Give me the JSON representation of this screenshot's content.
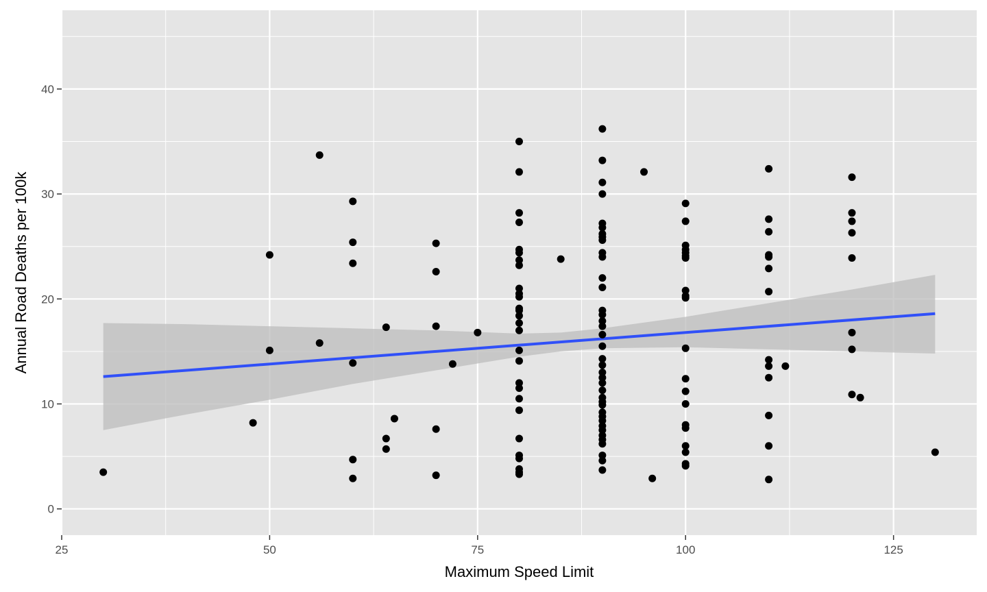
{
  "chart_data": {
    "type": "scatter",
    "title": "",
    "xlabel": "Maximum Speed Limit",
    "ylabel": "Annual Road Deaths per 100k",
    "xlim": [
      25,
      135
    ],
    "ylim": [
      -2.5,
      47.5
    ],
    "x_ticks": [
      25,
      50,
      75,
      100,
      125
    ],
    "y_ticks": [
      0,
      10,
      20,
      30,
      40
    ],
    "x_tick_labels": [
      "25",
      "50",
      "75",
      "100",
      "125"
    ],
    "y_tick_labels": [
      "0",
      "10",
      "20",
      "30",
      "40"
    ],
    "grid": true,
    "legend": "none",
    "colors": {
      "panel": "#e5e5e5",
      "grid": "#ffffff",
      "points": "#000000",
      "fit_line": "#3050f8",
      "confidence_band": "#bcbcbc"
    },
    "points": [
      [
        30,
        3.5
      ],
      [
        48,
        8.2
      ],
      [
        50,
        24.2
      ],
      [
        50,
        15.1
      ],
      [
        56,
        33.7
      ],
      [
        56,
        15.8
      ],
      [
        60,
        29.3
      ],
      [
        60,
        25.4
      ],
      [
        60,
        23.4
      ],
      [
        60,
        13.9
      ],
      [
        60,
        4.7
      ],
      [
        60,
        2.9
      ],
      [
        64,
        17.3
      ],
      [
        64,
        6.7
      ],
      [
        64,
        5.7
      ],
      [
        65,
        8.6
      ],
      [
        70,
        25.3
      ],
      [
        70,
        22.6
      ],
      [
        70,
        17.4
      ],
      [
        70,
        7.6
      ],
      [
        70,
        3.2
      ],
      [
        72,
        13.8
      ],
      [
        75,
        16.8
      ],
      [
        80,
        35.0
      ],
      [
        80,
        32.1
      ],
      [
        80,
        28.2
      ],
      [
        80,
        27.3
      ],
      [
        80,
        24.7
      ],
      [
        80,
        24.4
      ],
      [
        80,
        23.7
      ],
      [
        80,
        23.2
      ],
      [
        80,
        21.0
      ],
      [
        80,
        20.5
      ],
      [
        80,
        20.2
      ],
      [
        80,
        19.1
      ],
      [
        80,
        18.9
      ],
      [
        80,
        18.4
      ],
      [
        80,
        17.7
      ],
      [
        80,
        17.0
      ],
      [
        80,
        15.1
      ],
      [
        80,
        14.1
      ],
      [
        80,
        12.0
      ],
      [
        80,
        11.5
      ],
      [
        80,
        10.5
      ],
      [
        80,
        9.4
      ],
      [
        80,
        6.7
      ],
      [
        80,
        5.1
      ],
      [
        80,
        4.8
      ],
      [
        80,
        3.8
      ],
      [
        80,
        3.5
      ],
      [
        80,
        3.3
      ],
      [
        85,
        23.8
      ],
      [
        90,
        36.2
      ],
      [
        90,
        33.2
      ],
      [
        90,
        31.1
      ],
      [
        90,
        30.0
      ],
      [
        90,
        27.2
      ],
      [
        90,
        26.8
      ],
      [
        90,
        26.2
      ],
      [
        90,
        25.9
      ],
      [
        90,
        25.6
      ],
      [
        90,
        24.4
      ],
      [
        90,
        24.0
      ],
      [
        90,
        22.0
      ],
      [
        90,
        21.1
      ],
      [
        90,
        18.9
      ],
      [
        90,
        18.5
      ],
      [
        90,
        17.9
      ],
      [
        90,
        17.4
      ],
      [
        90,
        16.6
      ],
      [
        90,
        15.5
      ],
      [
        90,
        14.3
      ],
      [
        90,
        13.7
      ],
      [
        90,
        13.0
      ],
      [
        90,
        12.5
      ],
      [
        90,
        12.0
      ],
      [
        90,
        11.3
      ],
      [
        90,
        10.6
      ],
      [
        90,
        10.2
      ],
      [
        90,
        9.9
      ],
      [
        90,
        9.2
      ],
      [
        90,
        8.8
      ],
      [
        90,
        8.4
      ],
      [
        90,
        7.9
      ],
      [
        90,
        7.5
      ],
      [
        90,
        7.0
      ],
      [
        90,
        6.6
      ],
      [
        90,
        6.2
      ],
      [
        90,
        5.1
      ],
      [
        90,
        4.6
      ],
      [
        90,
        3.7
      ],
      [
        95,
        32.1
      ],
      [
        96,
        2.9
      ],
      [
        100,
        29.1
      ],
      [
        100,
        27.4
      ],
      [
        100,
        25.1
      ],
      [
        100,
        24.7
      ],
      [
        100,
        24.4
      ],
      [
        100,
        24.1
      ],
      [
        100,
        23.9
      ],
      [
        100,
        20.8
      ],
      [
        100,
        20.3
      ],
      [
        100,
        20.1
      ],
      [
        100,
        15.3
      ],
      [
        100,
        12.4
      ],
      [
        100,
        11.2
      ],
      [
        100,
        10.0
      ],
      [
        100,
        8.0
      ],
      [
        100,
        7.7
      ],
      [
        100,
        6.0
      ],
      [
        100,
        5.4
      ],
      [
        100,
        4.3
      ],
      [
        100,
        4.1
      ],
      [
        110,
        32.4
      ],
      [
        110,
        27.6
      ],
      [
        110,
        26.4
      ],
      [
        110,
        24.2
      ],
      [
        110,
        24.0
      ],
      [
        110,
        22.9
      ],
      [
        110,
        20.7
      ],
      [
        110,
        14.2
      ],
      [
        110,
        13.6
      ],
      [
        110,
        12.5
      ],
      [
        110,
        8.9
      ],
      [
        110,
        6.0
      ],
      [
        110,
        2.8
      ],
      [
        112,
        13.6
      ],
      [
        120,
        31.6
      ],
      [
        120,
        28.2
      ],
      [
        120,
        27.4
      ],
      [
        120,
        26.3
      ],
      [
        120,
        23.9
      ],
      [
        120,
        16.8
      ],
      [
        120,
        15.2
      ],
      [
        120,
        10.9
      ],
      [
        121,
        10.6
      ],
      [
        130,
        5.4
      ]
    ],
    "fit_line": {
      "x": [
        30,
        130
      ],
      "y": [
        12.6,
        18.6
      ]
    },
    "confidence_band": {
      "x": [
        30,
        40,
        50,
        60,
        70,
        80,
        85,
        90,
        100,
        110,
        120,
        130
      ],
      "lower": [
        7.5,
        9.0,
        10.4,
        11.9,
        13.2,
        14.5,
        15.0,
        15.3,
        15.4,
        15.2,
        15.0,
        14.8
      ],
      "upper": [
        17.7,
        17.6,
        17.4,
        17.2,
        17.0,
        16.7,
        16.8,
        17.2,
        18.3,
        19.6,
        20.9,
        22.3
      ]
    }
  }
}
